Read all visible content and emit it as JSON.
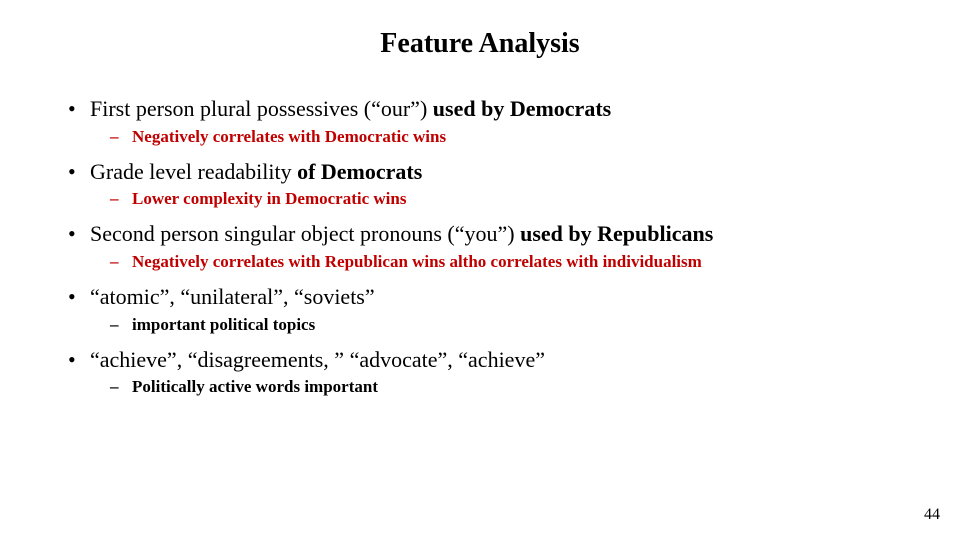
{
  "title": "Feature Analysis",
  "bullets": [
    {
      "main_segments": [
        {
          "text": "First person plural possessives (“our”) ",
          "bold": false
        },
        {
          "text": "used by Democrats",
          "bold": true
        }
      ],
      "sub": {
        "text": "Negatively correlates with Democratic wins",
        "red": true
      }
    },
    {
      "main_segments": [
        {
          "text": "Grade level readability ",
          "bold": false
        },
        {
          "text": "of Democrats",
          "bold": true
        }
      ],
      "sub": {
        "text": "Lower complexity in Democratic wins",
        "red": true
      }
    },
    {
      "main_segments": [
        {
          "text": "Second person singular object pronouns (“you”) ",
          "bold": false
        },
        {
          "text": "used by Republicans",
          "bold": true
        }
      ],
      "sub": {
        "text": "Negatively correlates with Republican wins altho correlates with individualism",
        "red": true
      }
    },
    {
      "main_segments": [
        {
          "text": "“atomic”, “unilateral”, “soviets”",
          "bold": false
        }
      ],
      "sub": {
        "text": "important political topics",
        "red": false
      }
    },
    {
      "main_segments": [
        {
          "text": "“achieve”, “disagreements, ” “advocate”, “achieve”",
          "bold": false
        }
      ],
      "sub": {
        "text": "Politically active words important",
        "red": false
      }
    }
  ],
  "page_number": "44",
  "colors": {
    "text": "#000000",
    "red": "#c00000",
    "background": "#ffffff"
  },
  "typography": {
    "title_fontsize": 28,
    "bullet_fontsize": 22,
    "sub_fontsize": 17,
    "font_family": "Times New Roman"
  }
}
